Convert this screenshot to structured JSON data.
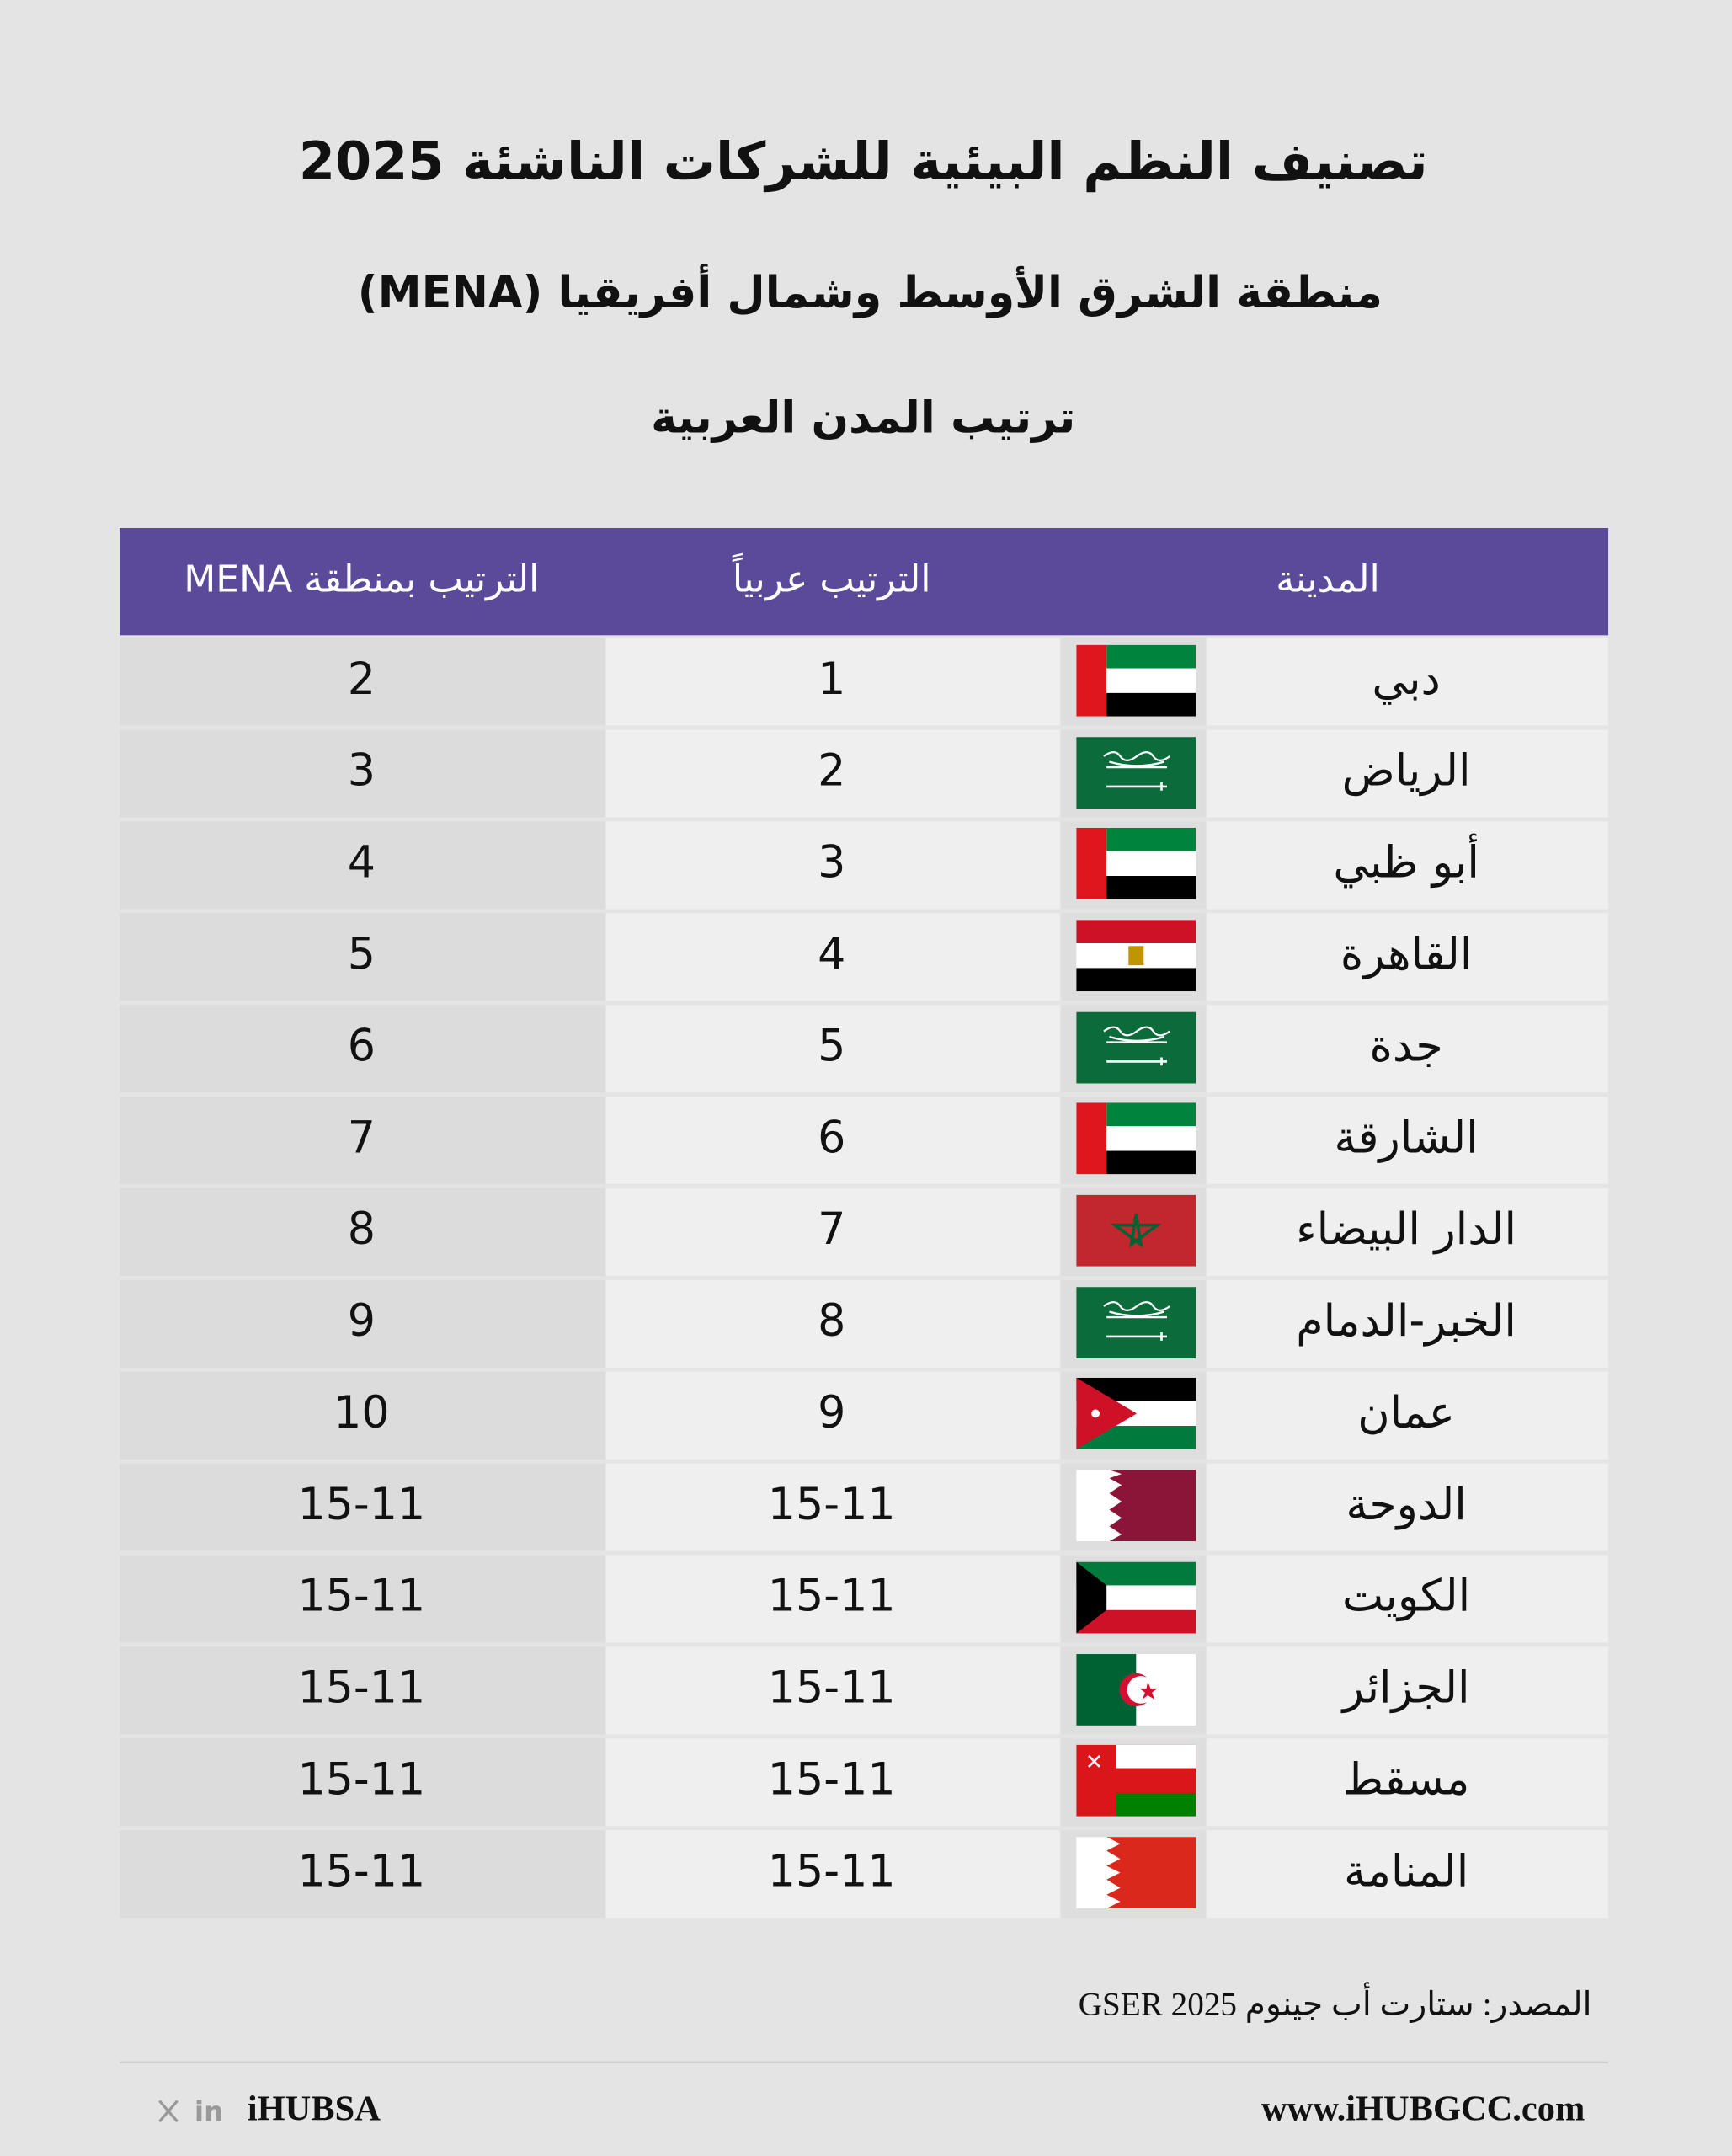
{
  "header": {
    "title": "تصنيف النظم البيئية للشركات الناشئة 2025",
    "subtitle": "منطقة الشرق الأوسط وشمال أفريقيا (MENA)",
    "heading": "ترتيب المدن العربية"
  },
  "table": {
    "columns": [
      "الترتيب بمنطقة MENA",
      "الترتيب عربياً",
      "المدينة"
    ],
    "rows": [
      {
        "city": "دبي",
        "arab_rank": 1,
        "mena_rank": 2
      },
      {
        "city": "الرياض",
        "arab_rank": 2,
        "mena_rank": 3
      },
      {
        "city": "أبو ظبي",
        "arab_rank": 3,
        "mena_rank": 4
      },
      {
        "city": "القاهرة",
        "arab_rank": 4,
        "mena_rank": 5
      },
      {
        "city": "جدة",
        "arab_rank": 5,
        "mena_rank": 6
      },
      {
        "city": "الشارقة",
        "arab_rank": 6,
        "mena_rank": 7
      },
      {
        "city": "الدار البيضاء",
        "arab_rank": 7,
        "mena_rank": 8
      },
      {
        "city": "الخبر-الدمام",
        "arab_rank": 8,
        "mena_rank": 9
      },
      {
        "city": "عمان",
        "arab_rank": 9,
        "mena_rank": 10
      },
      {
        "city": "الدوحة",
        "arab_rank": "15-11",
        "mena_rank": "15-11"
      },
      {
        "city": "الكويت",
        "arab_rank": "15-11",
        "mena_rank": "15-11"
      },
      {
        "city": "الجزائر",
        "arab_rank": "15-11",
        "mena_rank": "15-11"
      },
      {
        "city": "مسقط",
        "arab_rank": "15-11",
        "mena_rank": "15-11"
      },
      {
        "city": "المنامة",
        "arab_rank": "15-11",
        "mena_rank": "15-11"
      }
    ]
  },
  "footer": {
    "source": "المصدر: ستارت أب جينوم GSER 2025",
    "linkedin": "in",
    "handle": "iHUBSA",
    "website": "www.iHUBGCC.com"
  }
}
